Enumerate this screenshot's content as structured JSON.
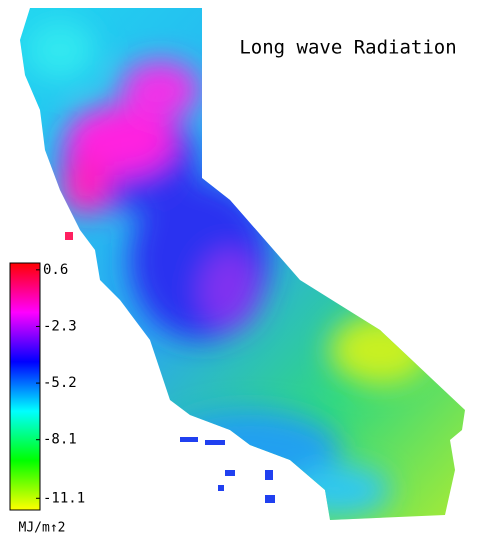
{
  "title": "Long wave Radiation",
  "colorbar": {
    "lim": [
      -11.7,
      0.95
    ],
    "ticks": [
      0.6,
      -2.3,
      -5.2,
      -8.1,
      -11.1
    ],
    "label": "MJ/m↑2",
    "colors": [
      "#ffff00",
      "#00ff00",
      "#00ffff",
      "#0000ff",
      "#ff00ff",
      "#ff0000"
    ]
  }
}
